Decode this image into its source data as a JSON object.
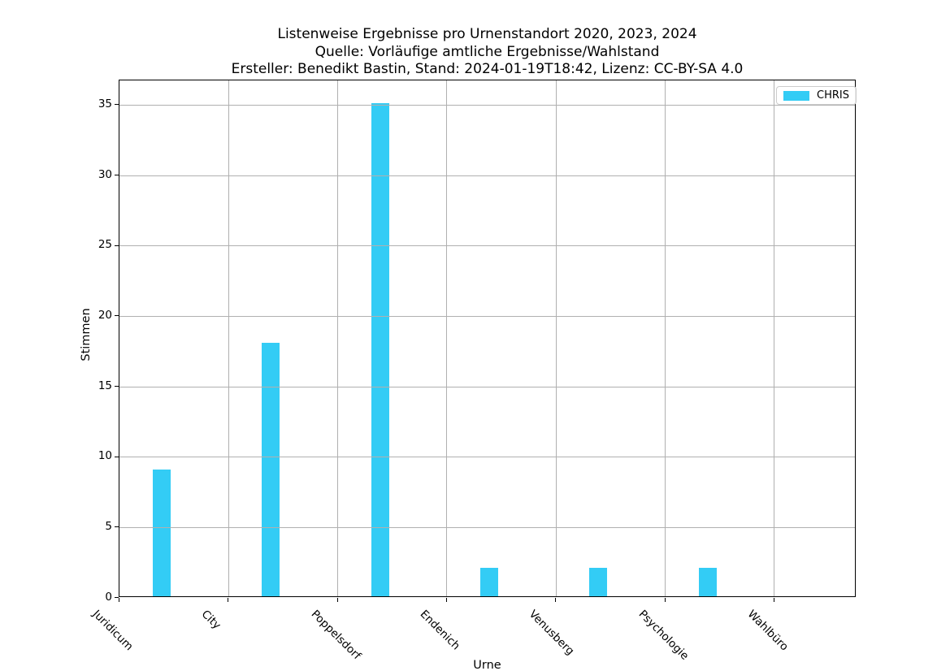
{
  "title_lines": [
    "Listenweise Ergebnisse pro Urnenstandort 2020, 2023, 2024",
    "Quelle: Vorläufige amtliche Ergebnisse/Wahlstand",
    "Ersteller: Benedikt Bastin, Stand: 2024-01-19T18:42, Lizenz: CC-BY-SA 4.0"
  ],
  "legend": {
    "label": "CHRIS",
    "swatch_color": "#33ccf5"
  },
  "colors": {
    "bar": "#33ccf5",
    "grid": "#b0b0b0",
    "axis": "#000000",
    "background": "#ffffff",
    "legend_border": "#cccccc"
  },
  "chart_data": {
    "type": "bar",
    "title": "Listenweise Ergebnisse pro Urnenstandort 2020, 2023, 2024\nQuelle: Vorläufige amtliche Ergebnisse/Wahlstand\nErsteller: Benedikt Bastin, Stand: 2024-01-19T18:42, Lizenz: CC-BY-SA 4.0",
    "xlabel": "Urne",
    "ylabel": "Stimmen",
    "categories": [
      "Juridicum",
      "City",
      "Poppelsdorf",
      "Endenich",
      "Venusberg",
      "Psychologie",
      "Wahlbüro"
    ],
    "series": [
      {
        "name": "CHRIS",
        "color": "#33ccf5",
        "values": [
          9,
          18,
          35,
          2,
          2,
          2,
          0
        ]
      }
    ],
    "ylim": [
      0,
      36.75
    ],
    "yticks": [
      0,
      5,
      10,
      15,
      20,
      25,
      30,
      35
    ],
    "grid": true,
    "grid_above_bars": true,
    "legend_position": "upper right",
    "x_tick_label_rotation": 45
  }
}
